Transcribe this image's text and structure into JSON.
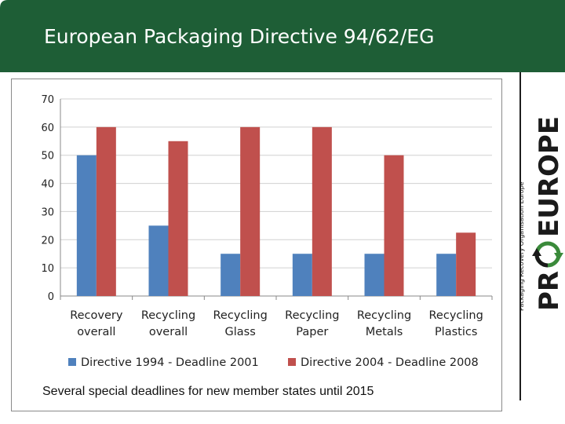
{
  "slide": {
    "title": "European Packaging Directive 94/62/EG",
    "note": "Several special deadlines for new member states until 2015",
    "header_color": "#1e5e36"
  },
  "logo": {
    "text_left": "PR",
    "text_right": "EUROPE",
    "tagline": "Packaging Recovery Organisation Europe",
    "color": "#1a1a1a",
    "arrow_color": "#3a8a3a"
  },
  "chart_data": {
    "type": "bar",
    "title": "",
    "xlabel": "",
    "ylabel": "",
    "ylim": [
      0,
      70
    ],
    "yticks": [
      0,
      10,
      20,
      30,
      40,
      50,
      60,
      70
    ],
    "grid": true,
    "legend_position": "bottom",
    "categories": [
      [
        "Recovery",
        "overall"
      ],
      [
        "Recycling",
        "overall"
      ],
      [
        "Recycling",
        "Glass"
      ],
      [
        "Recycling",
        "Paper"
      ],
      [
        "Recycling",
        "Metals"
      ],
      [
        "Recycling",
        "Plastics"
      ]
    ],
    "series": [
      {
        "name": "Directive 1994 - Deadline 2001",
        "color": "#4f81bd",
        "values": [
          50,
          25,
          15,
          15,
          15,
          15
        ]
      },
      {
        "name": "Directive 2004 - Deadline 2008",
        "color": "#c0504d",
        "values": [
          60,
          55,
          60,
          60,
          50,
          22.5
        ]
      }
    ]
  }
}
